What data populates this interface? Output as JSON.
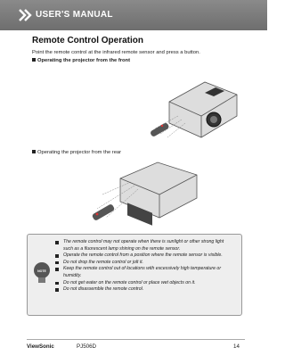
{
  "header": {
    "title": "USER'S MANUAL"
  },
  "section": {
    "title": "Remote Control Operation",
    "intro": "Point the remote control at the infrared remote sensor and press a button.",
    "items": [
      {
        "label": "Operating the projector from the front"
      },
      {
        "label": "Operating the projector from the rear"
      }
    ]
  },
  "note": {
    "icon_label": "NOTE",
    "items": [
      "The remote control may not operate when there is sunlight or other strong light such as a fluorescent lamp shining on the remote sensor.",
      "Operate the remote control from a position where the remote sensor is visible.",
      "Do not drop the remote control or jolt it.",
      "Keep the remote control out of locations with excessively high temperature or humidity.",
      "Do not get water on the remote control or place wet objects on it.",
      "Do not disassemble the remote control."
    ]
  },
  "footer": {
    "brand": "ViewSonic",
    "model": "PJ506D",
    "page": "14"
  }
}
